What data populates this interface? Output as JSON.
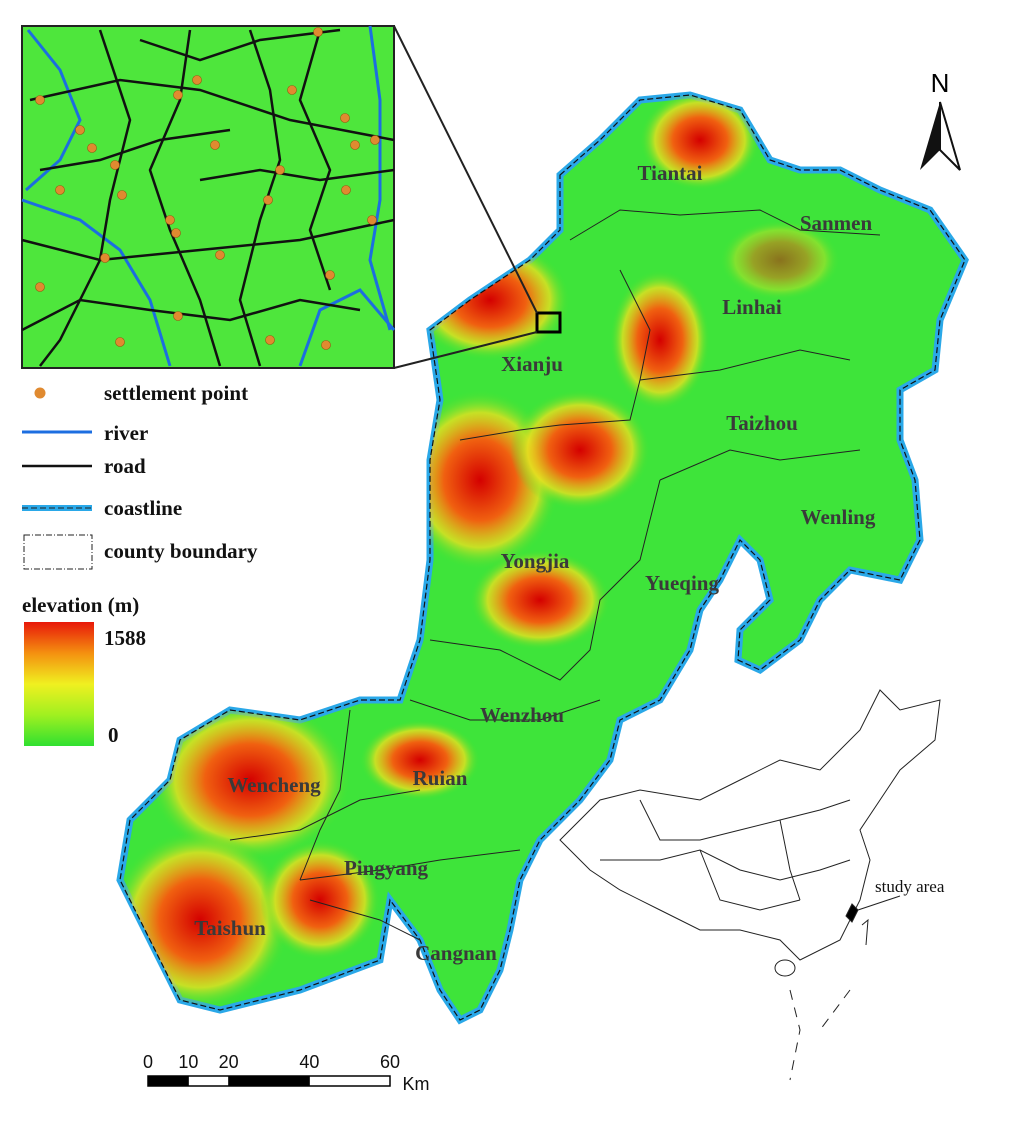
{
  "north_arrow": "N",
  "counties": [
    "Tiantai",
    "Sanmen",
    "Linhai",
    "Xianju",
    "Taizhou",
    "Wenling",
    "Yongjia",
    "Yueqing",
    "Wenzhou",
    "Wencheng",
    "Ruian",
    "Pingyang",
    "Taishun",
    "Cangnan"
  ],
  "legend": {
    "items": [
      "settlement point",
      "river",
      "road",
      "coastline",
      "county boundary"
    ],
    "elevation": {
      "title": "elevation (m)",
      "max": 1588,
      "min": 0
    }
  },
  "scale": {
    "ticks": [
      0,
      10,
      20,
      40,
      60
    ],
    "unit": "Km"
  },
  "locator": {
    "label": "study area"
  }
}
